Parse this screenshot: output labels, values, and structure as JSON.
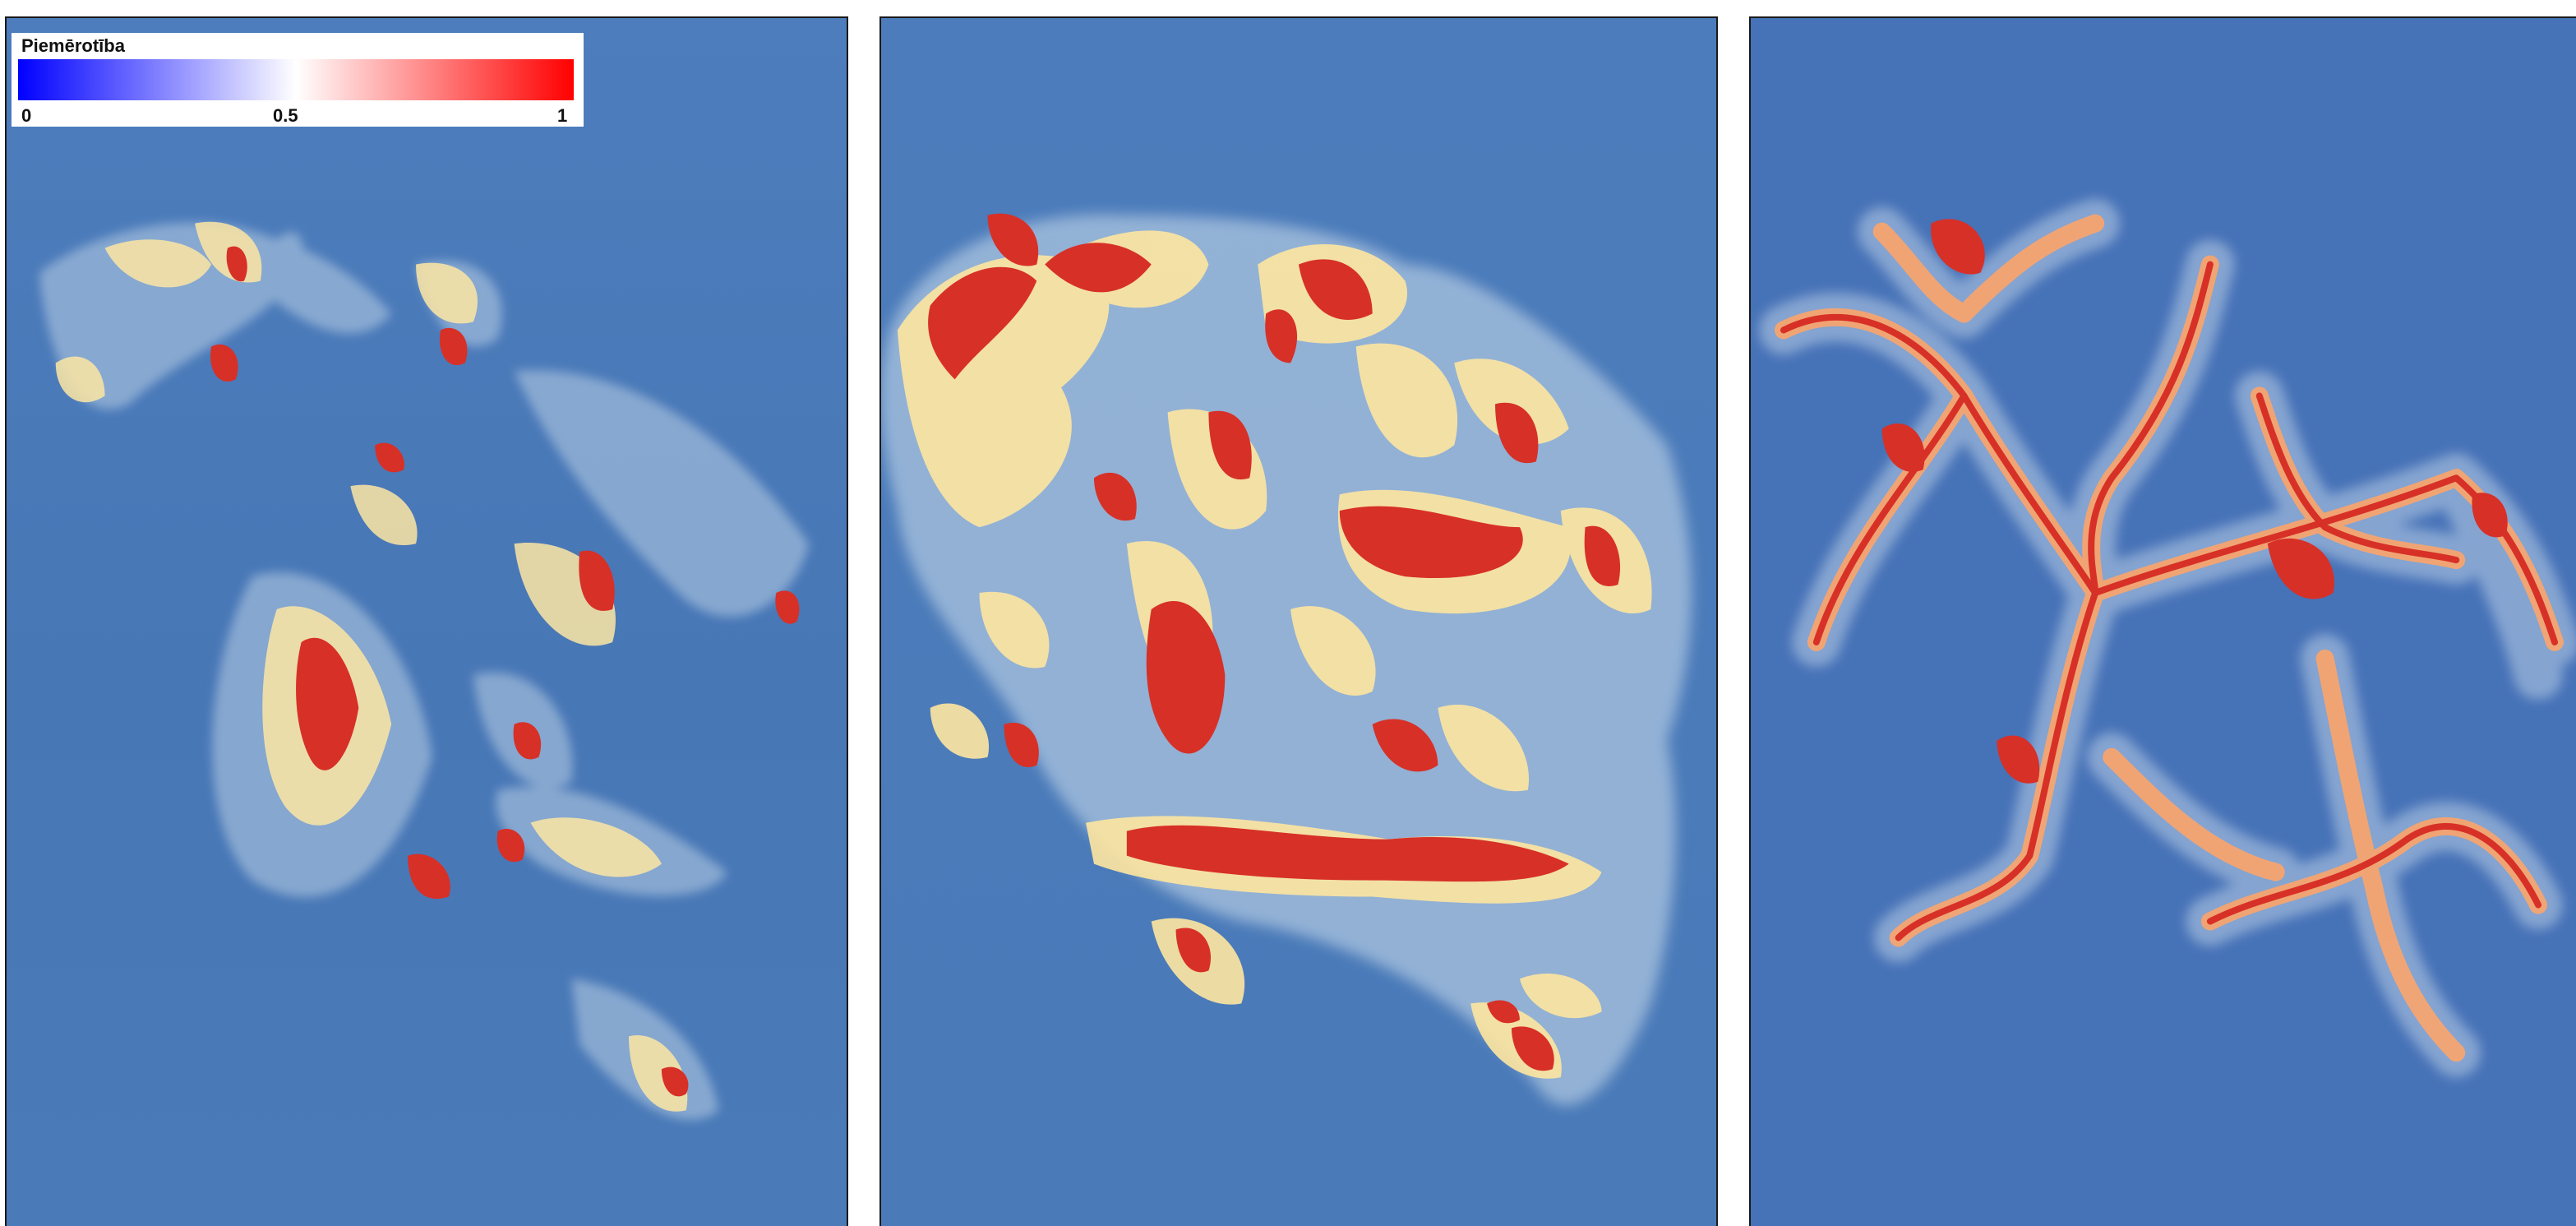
{
  "legend": {
    "title": "Piemērotība",
    "tick_min": "0",
    "tick_mid": "0.5",
    "tick_max": "1",
    "colors": {
      "low": "#0000ff",
      "mid": "#ffffff",
      "high": "#ff0000"
    }
  },
  "panels": [
    {
      "id": "panel-1",
      "intensity": "low"
    },
    {
      "id": "panel-2",
      "intensity": "high"
    },
    {
      "id": "panel-3",
      "intensity": "medium"
    }
  ],
  "colors": {
    "background": "#4a79b8",
    "hot": "#d7301f",
    "warm": "#fc8d59",
    "pale": "#fee8a8",
    "halo": "#bcd3e6"
  }
}
